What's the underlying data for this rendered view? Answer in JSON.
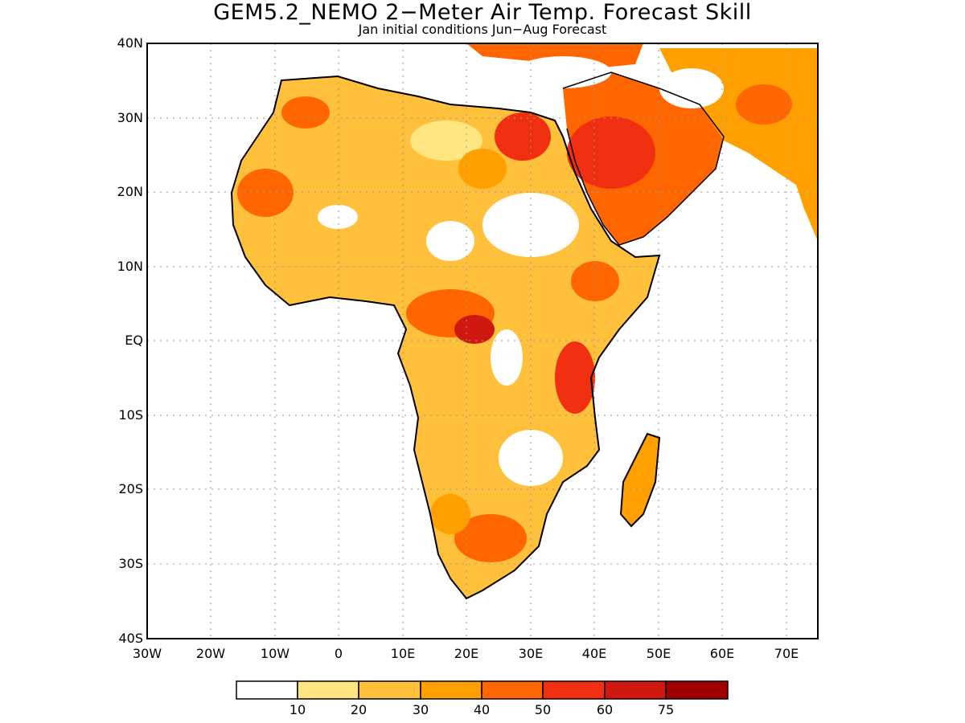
{
  "title": "GEM5.2_NEMO 2−Meter Air Temp. Forecast Skill",
  "subtitle": "Jan initial conditions  Jun−Aug Forecast",
  "map": {
    "lon_range": [
      -30,
      75
    ],
    "lat_range": [
      -40,
      40
    ],
    "lat_labels": [
      "40N",
      "30N",
      "20N",
      "10N",
      "EQ",
      "10S",
      "20S",
      "30S",
      "40S"
    ],
    "lon_labels": [
      "30W",
      "20W",
      "10W",
      "0",
      "10E",
      "20E",
      "30E",
      "40E",
      "50E",
      "60E",
      "70E"
    ],
    "grid": "dotted",
    "field": "2-meter air temperature forecast skill"
  },
  "colorbar": {
    "labels": [
      "10",
      "20",
      "30",
      "40",
      "50",
      "60",
      "75"
    ],
    "colors": [
      "#ffffff",
      "#ffe680",
      "#ffc03c",
      "#ffa000",
      "#ff6600",
      "#f03010",
      "#d01810",
      "#a00000"
    ]
  }
}
